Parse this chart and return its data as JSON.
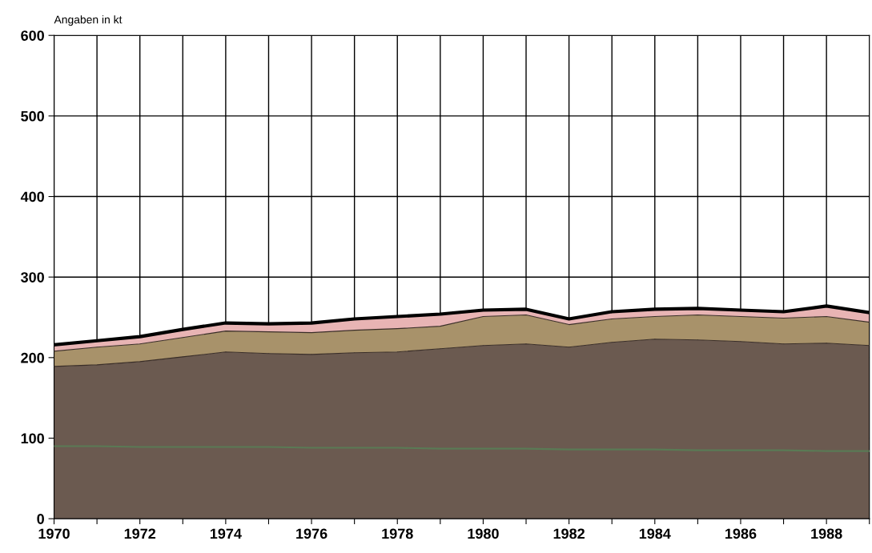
{
  "chart_data": {
    "type": "area",
    "ylabel": "Angaben in kt",
    "stacked": true,
    "x": [
      1970,
      1971,
      1972,
      1973,
      1974,
      1975,
      1976,
      1977,
      1978,
      1979,
      1980,
      1981,
      1982,
      1983,
      1984,
      1985,
      1986,
      1987,
      1988,
      1989
    ],
    "series": [
      {
        "color": "#6b5a50",
        "values": [
          189,
          191,
          195,
          201,
          207,
          205,
          204,
          206,
          207,
          211,
          215,
          217,
          213,
          219,
          223,
          222,
          220,
          217,
          218,
          215
        ]
      },
      {
        "color": "#a8926a",
        "values": [
          19,
          22,
          22,
          24,
          26,
          27,
          27,
          28,
          29,
          28,
          36,
          36,
          28,
          29,
          28,
          31,
          31,
          32,
          33,
          29
        ]
      },
      {
        "color": "#e8b4b4",
        "values": [
          8,
          8,
          9,
          10,
          10,
          10,
          12,
          14,
          15,
          15,
          8,
          7,
          7,
          9,
          9,
          8,
          8,
          8,
          13,
          12
        ]
      },
      {
        "type": "line",
        "color": "#5a7a55",
        "values": [
          90,
          90,
          89,
          89,
          89,
          89,
          88,
          88,
          88,
          87,
          87,
          87,
          86,
          86,
          86,
          85,
          85,
          85,
          84,
          84
        ]
      }
    ],
    "xlim": [
      1970,
      1989
    ],
    "ylim": [
      0,
      600
    ],
    "xticks": [
      1970,
      {
        "value": 1971,
        "label": null
      },
      1972,
      {
        "value": 1973,
        "label": null
      },
      1974,
      {
        "value": 1975,
        "label": null
      },
      1976,
      {
        "value": 1977,
        "label": null
      },
      1978,
      {
        "value": 1979,
        "label": null
      },
      1980,
      {
        "value": 1981,
        "label": null
      },
      1982,
      {
        "value": 1983,
        "label": null
      },
      1984,
      {
        "value": 1985,
        "label": null
      },
      1986,
      {
        "value": 1987,
        "label": null
      },
      1988,
      {
        "value": 1989,
        "label": null
      }
    ],
    "yticks": [
      0,
      100,
      200,
      300,
      400,
      500,
      600
    ],
    "grid": true
  }
}
